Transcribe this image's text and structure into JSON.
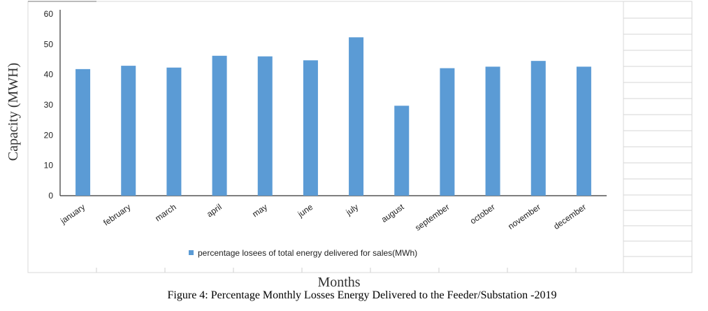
{
  "chart_data": {
    "type": "bar",
    "title": "",
    "caption": "Figure 4: Percentage Monthly Losses Energy Delivered to the Feeder/Substation -2019",
    "xlabel": "Months",
    "ylabel": "Capacity (MWH)",
    "ylim": [
      0,
      60
    ],
    "yticks": [
      "0",
      "10",
      "20",
      "30",
      "40",
      "50",
      "60"
    ],
    "categories": [
      "january",
      "february",
      "march",
      "april",
      "may",
      "june",
      "july",
      "august",
      "september",
      "october",
      "november",
      "december"
    ],
    "series": [
      {
        "name": "percentage losees of total energy delivered for sales(MWh)",
        "values": [
          41.8,
          42.9,
          42.3,
          46.2,
          46.0,
          44.7,
          52.3,
          29.7,
          42.1,
          42.6,
          44.5,
          42.6
        ]
      }
    ],
    "legend_position": "bottom",
    "grid": false,
    "bar_color": "#5b9bd5"
  }
}
